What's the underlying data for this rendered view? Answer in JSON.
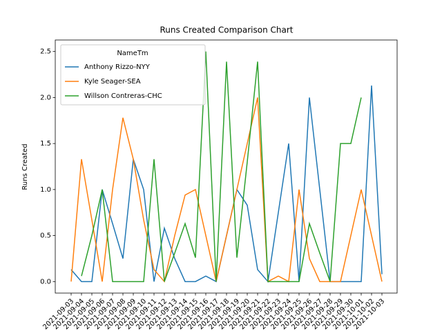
{
  "chart_data": {
    "type": "line",
    "title": "Runs Created Comparison Chart",
    "y_label": "Runs Created",
    "categories": [
      "2021-09-03",
      "2021-09-04",
      "2021-09-05",
      "2021-09-06",
      "2021-09-07",
      "2021-09-08",
      "2021-09-09",
      "2021-09-10",
      "2021-09-11",
      "2021-09-12",
      "2021-09-13",
      "2021-09-14",
      "2021-09-15",
      "2021-09-16",
      "2021-09-17",
      "2021-09-18",
      "2021-09-19",
      "2021-09-20",
      "2021-09-21",
      "2021-09-22",
      "2021-09-23",
      "2021-09-24",
      "2021-09-25",
      "2021-09-26",
      "2021-09-27",
      "2021-09-28",
      "2021-09-29",
      "2021-09-30",
      "2021-10-01",
      "2021-10-02",
      "2021-10-03"
    ],
    "legend_title": "NameTm",
    "legend": "upper left",
    "series": [
      {
        "name": "Anthony Rizzo-NYY",
        "color": "#1f77b4",
        "values": [
          0.13,
          0,
          0,
          1.0,
          0.63,
          0.25,
          1.33,
          1.0,
          0,
          0.58,
          0.25,
          0,
          0,
          0.06,
          0,
          0.5,
          1.0,
          0.83,
          0.13,
          0,
          0.75,
          1.5,
          0,
          2.0,
          1.0,
          0,
          0,
          0,
          0,
          2.13,
          0.08
        ]
      },
      {
        "name": "Kyle Seager-SEA",
        "color": "#ff7f0e",
        "values": [
          0,
          1.33,
          0.67,
          0,
          1.0,
          1.78,
          1.33,
          0.67,
          0.13,
          0,
          0.5,
          0.94,
          1.0,
          0.5,
          0,
          0.5,
          1.0,
          1.5,
          2.0,
          0,
          0.06,
          0,
          1.0,
          0.25,
          0,
          0,
          0,
          0.5,
          1.0,
          0.5,
          0
        ]
      },
      {
        "name": "Willson Contreras-CHC",
        "color": "#2ca02c",
        "values": [
          null,
          0.06,
          0.5,
          1.0,
          0,
          0,
          0,
          0,
          1.33,
          0,
          0.31,
          0.63,
          0.26,
          2.5,
          0,
          2.39,
          0.26,
          1.3,
          2.39,
          0,
          0,
          0,
          0,
          0.63,
          0.31,
          0,
          1.5,
          1.5,
          2.0,
          null,
          null
        ]
      }
    ],
    "ylim": [
      -0.125,
      2.625
    ],
    "yticks": [
      {
        "value": 0,
        "label": "0.0"
      },
      0.5,
      {
        "value": 1,
        "label": "1.0"
      },
      1.5,
      {
        "value": 2,
        "label": "2.0"
      },
      2.5
    ]
  }
}
